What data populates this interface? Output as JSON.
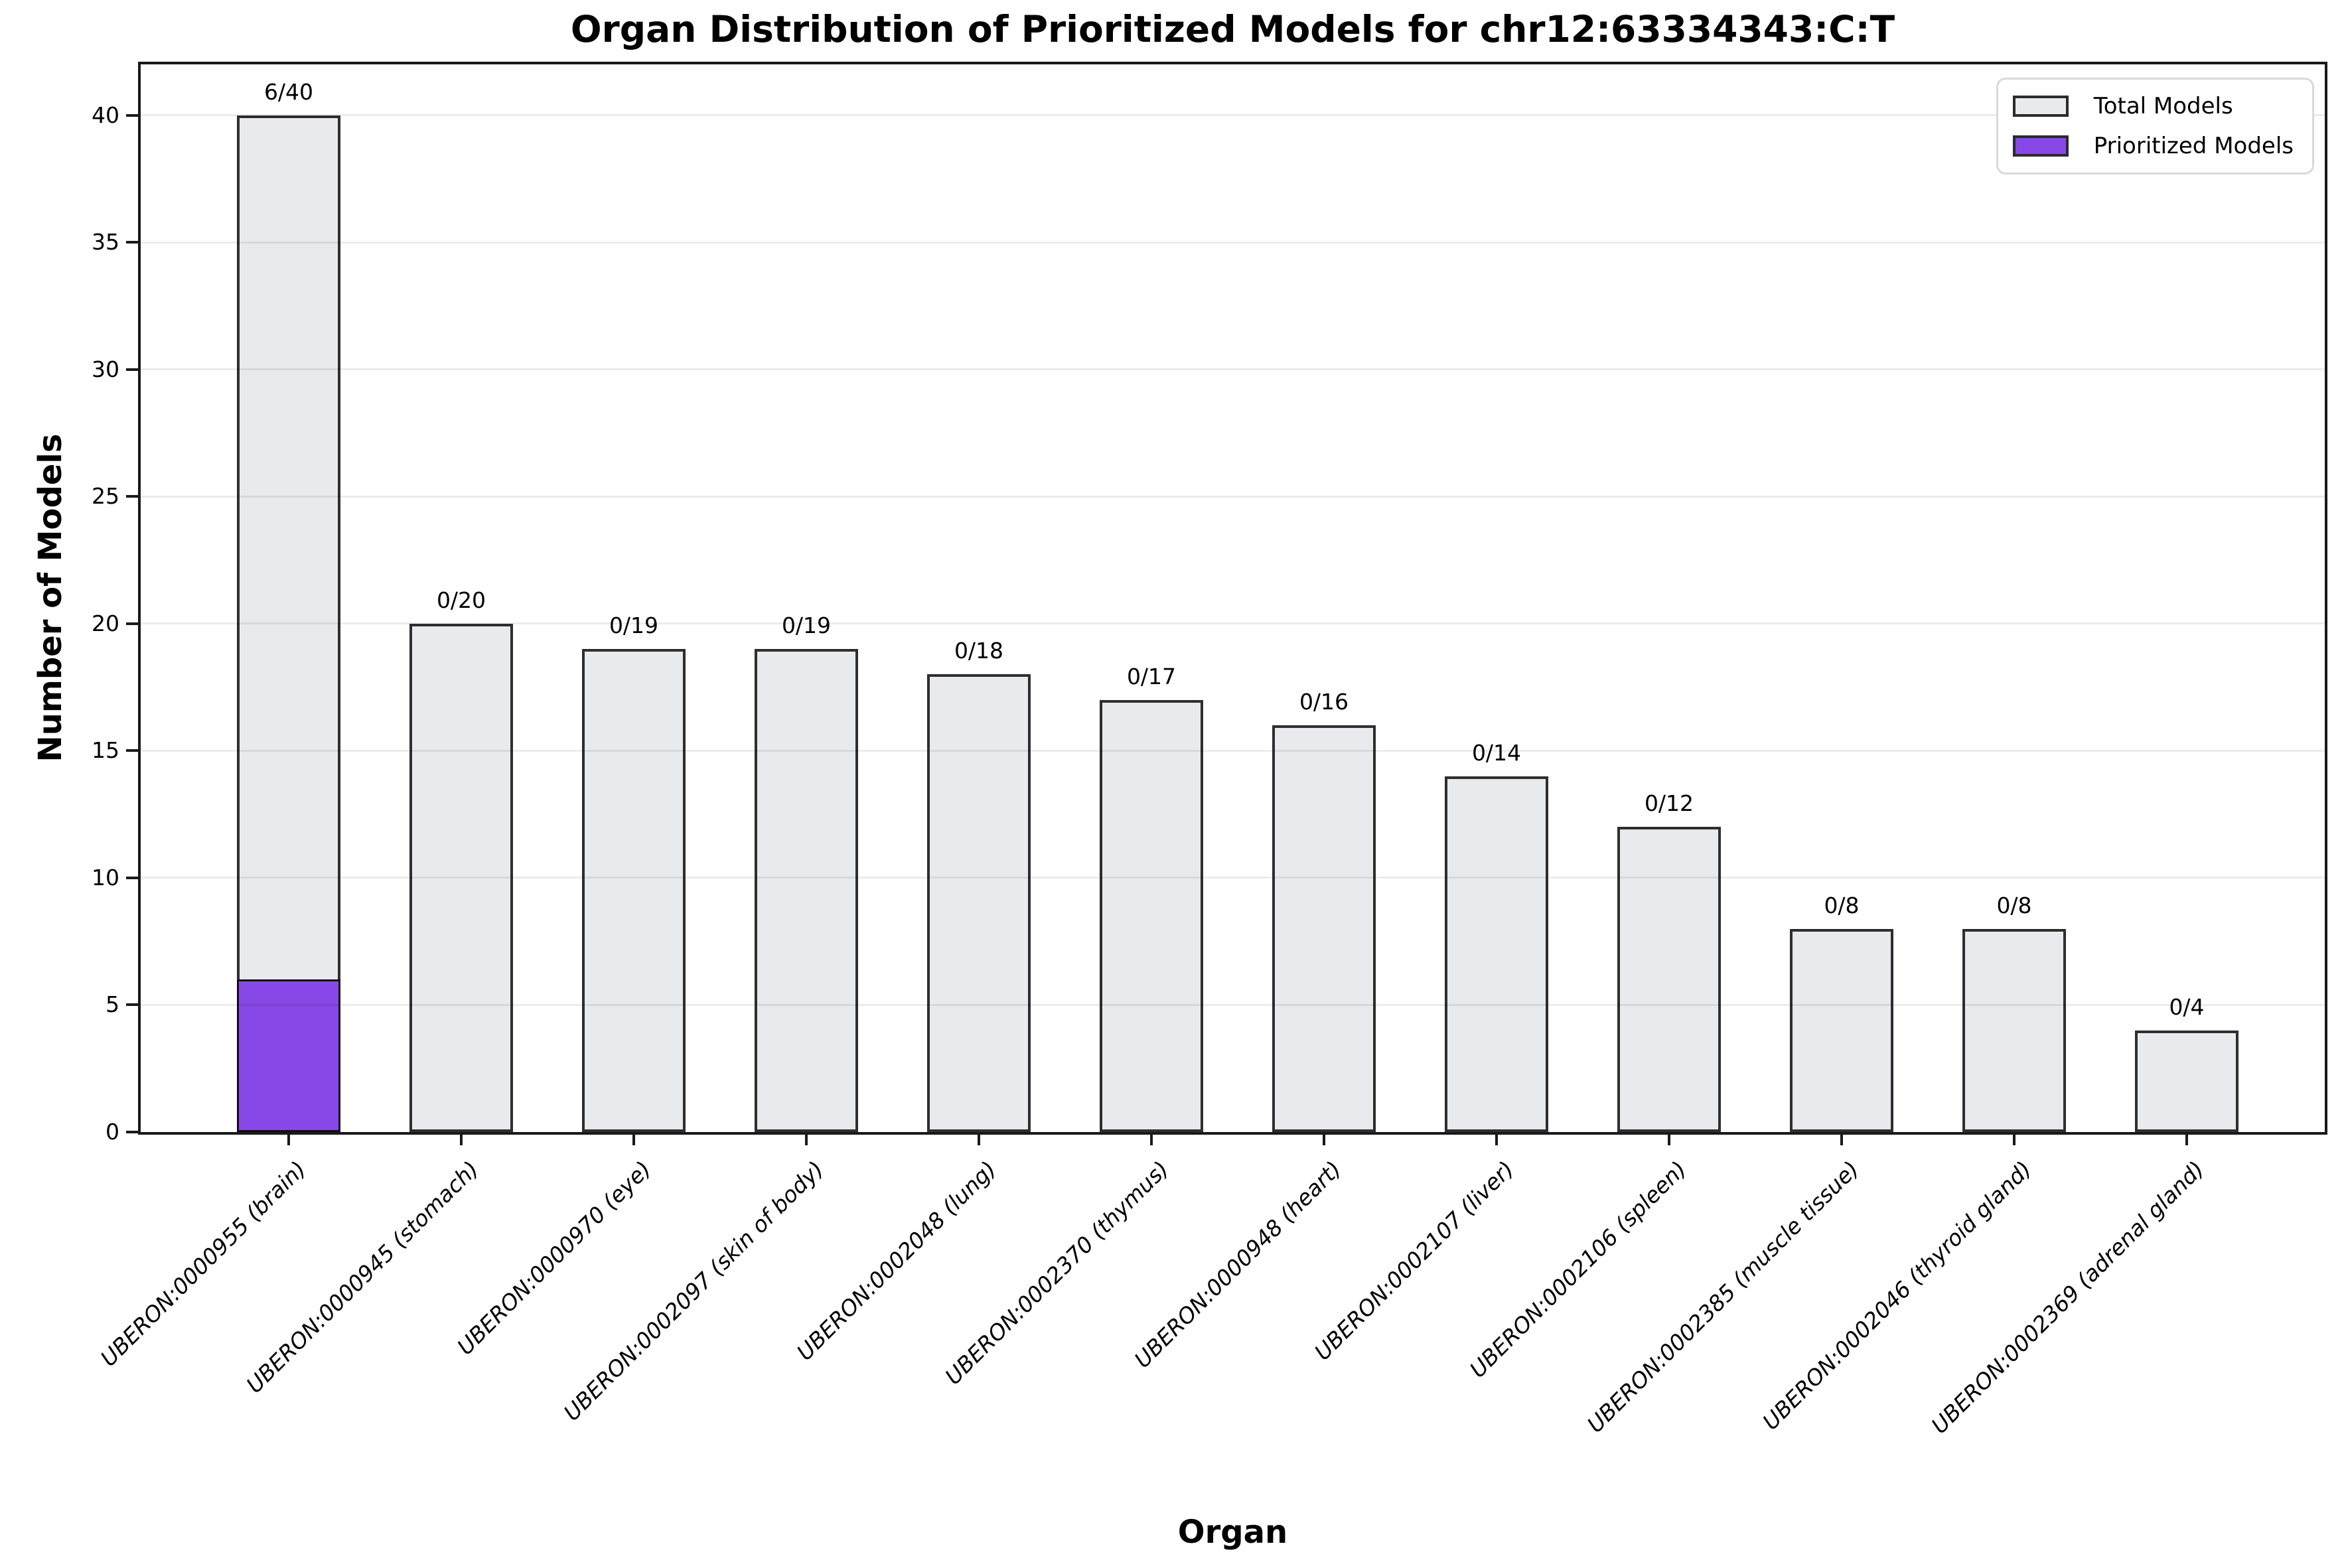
{
  "chart_data": {
    "type": "bar",
    "title": "Organ Distribution of Prioritized Models for chr12:63334343:C:T",
    "xlabel": "Organ",
    "ylabel": "Number of Models",
    "ylim": [
      0,
      42
    ],
    "yticks": [
      0,
      5,
      10,
      15,
      20,
      25,
      30,
      35,
      40
    ],
    "grid": "horizontal",
    "legend_position": "upper right",
    "categories": [
      "UBERON:0000955 (brain)",
      "UBERON:0000945 (stomach)",
      "UBERON:0000970 (eye)",
      "UBERON:0002097 (skin of body)",
      "UBERON:0002048 (lung)",
      "UBERON:0002370 (thymus)",
      "UBERON:0000948 (heart)",
      "UBERON:0002107 (liver)",
      "UBERON:0002106 (spleen)",
      "UBERON:0002385 (muscle tissue)",
      "UBERON:0002046 (thyroid gland)",
      "UBERON:0002369 (adrenal gland)"
    ],
    "series": [
      {
        "name": "Total Models",
        "values": [
          40,
          20,
          19,
          19,
          18,
          17,
          16,
          14,
          12,
          8,
          8,
          4
        ],
        "fill": "#e8eaee",
        "edge": "#2e2e2e"
      },
      {
        "name": "Prioritized Models",
        "values": [
          6,
          0,
          0,
          0,
          0,
          0,
          0,
          0,
          0,
          0,
          0,
          0
        ],
        "fill": "#8848e8",
        "edge": "#111111"
      }
    ],
    "bar_labels": [
      "6/40",
      "0/20",
      "0/19",
      "0/19",
      "0/18",
      "0/17",
      "0/16",
      "0/14",
      "0/12",
      "0/8",
      "0/8",
      "0/4"
    ],
    "legend": [
      {
        "label": "Total Models",
        "fill": "#e8eaee"
      },
      {
        "label": "Prioritized Models",
        "fill": "#8848e8"
      }
    ]
  }
}
